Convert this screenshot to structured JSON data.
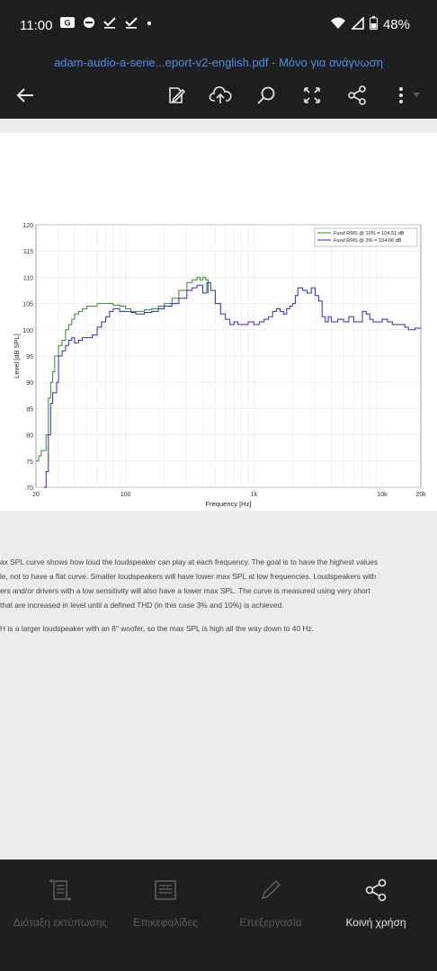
{
  "status": {
    "time": "11:00",
    "battery": "48%"
  },
  "document": {
    "title": "adam-audio-a-serie...eport-v2-english.pdf - Μόνο για ανάγνωση"
  },
  "body_text": {
    "p1": [
      "ax SPL curve shows how loud the loudspeaker can play at each frequency. The goal is to have the highest values",
      "le, not to have a flat curve. Smaller loudspeakers will have lower max SPL at low frequencies. Loudspeakers with",
      "ers and/or drivers with a low sensitivity will also have a lower max SPL. The curve is measured using very short",
      "that are increased in level until a defined THD (in this case 3% and 10%) is achieved."
    ],
    "p2": "H is a larger loudspeaker with an 8\" woofer, so the max SPL is high all the way down to 40 Hz."
  },
  "bottom_nav": {
    "layout": "Διάταξη εκτύπωσης",
    "headings": "Επικεφαλίδες",
    "edit": "Επεξεργασία",
    "share": "Κοινή χρήση"
  },
  "chart_data": {
    "type": "line",
    "xlabel": "Frequency [Hz]",
    "ylabel": "Level [dB SPL]",
    "xscale": "log",
    "xlim": [
      20,
      20000
    ],
    "ylim": [
      70,
      120
    ],
    "x_ticks": [
      20,
      100,
      1000,
      10000,
      20000
    ],
    "x_tick_labels": [
      "20",
      "100",
      "1k",
      "10k",
      "20k"
    ],
    "y_ticks": [
      70,
      75,
      80,
      85,
      90,
      95,
      100,
      105,
      110,
      115,
      120
    ],
    "grid": true,
    "legend_position": "top-right",
    "series": [
      {
        "name": "Fund RMS @ 10% = 104.51 dB",
        "color": "#2e8b2e",
        "x": [
          20,
          21,
          22,
          23,
          24,
          25,
          26,
          27,
          28,
          30,
          32,
          34,
          36,
          38,
          40,
          43,
          46,
          50,
          55,
          60,
          70,
          80,
          90,
          100,
          110,
          120,
          140,
          160,
          180,
          200,
          230,
          260,
          300,
          330,
          360,
          380,
          400,
          420,
          440
        ],
        "y": [
          75,
          76,
          77,
          77,
          80,
          87,
          90,
          92,
          95,
          97,
          98,
          100,
          101,
          102,
          103,
          103.5,
          104,
          104.5,
          104.5,
          105,
          105,
          104.7,
          104.5,
          104,
          103.5,
          103.5,
          103.8,
          104,
          104.5,
          105,
          106,
          107.5,
          109,
          109.5,
          110,
          109.5,
          110,
          109.5,
          107
        ]
      },
      {
        "name": "Fund RMS @ 3% = 104.06 dB",
        "color": "#2a2ac8",
        "x": [
          23,
          24,
          25,
          26,
          27,
          28,
          29,
          30,
          32,
          34,
          36,
          38,
          40,
          43,
          46,
          50,
          55,
          60,
          65,
          70,
          75,
          80,
          90,
          100,
          110,
          120,
          140,
          160,
          180,
          200,
          230,
          260,
          300,
          330,
          360,
          400,
          430,
          460,
          500,
          550,
          600,
          650,
          700,
          750,
          800,
          900,
          1000,
          1100,
          1200,
          1300,
          1400,
          1500,
          1600,
          1700,
          1800,
          1900,
          2000,
          2100,
          2200,
          2400,
          2600,
          2800,
          3000,
          3200,
          3400,
          3600,
          3800,
          4000,
          4500,
          5000,
          5500,
          6000,
          6500,
          7000,
          7500,
          8000,
          8500,
          9000,
          10000,
          11000,
          12000,
          13000,
          14000,
          15000,
          16000,
          18000,
          20000
        ],
        "y": [
          70,
          73,
          80,
          86,
          88,
          88,
          90,
          95,
          96,
          97,
          98,
          98.5,
          97.5,
          98,
          98.5,
          98.5,
          99,
          100.5,
          101.5,
          102.5,
          103.5,
          104,
          103.5,
          103.5,
          103.3,
          103,
          103.3,
          103.5,
          104,
          104.5,
          105,
          106,
          107.5,
          108,
          108.5,
          107,
          109,
          107.5,
          105,
          103,
          102,
          101,
          101.5,
          101,
          101,
          101.5,
          101,
          101.5,
          102,
          102.5,
          103.5,
          104,
          103.5,
          103,
          104,
          104.5,
          105,
          106.5,
          108,
          107.5,
          107,
          108,
          106.5,
          105.5,
          102.5,
          101.5,
          102.5,
          101.5,
          102,
          101.5,
          102.5,
          101.5,
          101.5,
          103.5,
          103,
          102,
          101.5,
          101.5,
          102,
          101.5,
          101,
          101,
          101,
          100.5,
          100,
          100.3,
          100.3
        ]
      }
    ]
  }
}
